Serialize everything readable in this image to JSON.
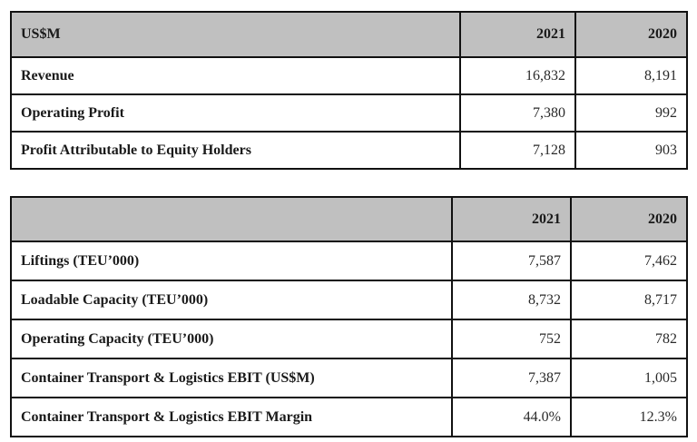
{
  "financial_table": {
    "headers": [
      "US$M",
      "2021",
      "2020"
    ],
    "rows": [
      {
        "label": "Revenue",
        "y2021": "16,832",
        "y2020": "8,191"
      },
      {
        "label": "Operating Profit",
        "y2021": "7,380",
        "y2020": "992"
      },
      {
        "label": "Profit Attributable to Equity Holders",
        "y2021": "7,128",
        "y2020": "903"
      }
    ]
  },
  "operations_table": {
    "headers": [
      "",
      "2021",
      "2020"
    ],
    "rows": [
      {
        "label": "Liftings (TEU’000)",
        "y2021": "7,587",
        "y2020": "7,462"
      },
      {
        "label": "Loadable Capacity (TEU’000)",
        "y2021": "8,732",
        "y2020": "8,717"
      },
      {
        "label": "Operating Capacity (TEU’000)",
        "y2021": "752",
        "y2020": "782"
      },
      {
        "label": "Container Transport & Logistics EBIT (US$M)",
        "y2021": "7,387",
        "y2020": "1,005"
      },
      {
        "label": "Container Transport & Logistics EBIT Margin",
        "y2021": "44.0%",
        "y2020": "12.3%"
      }
    ]
  },
  "colors": {
    "header_background": "#c0c0c0",
    "border": "#111111",
    "text": "#1a1a1a"
  }
}
